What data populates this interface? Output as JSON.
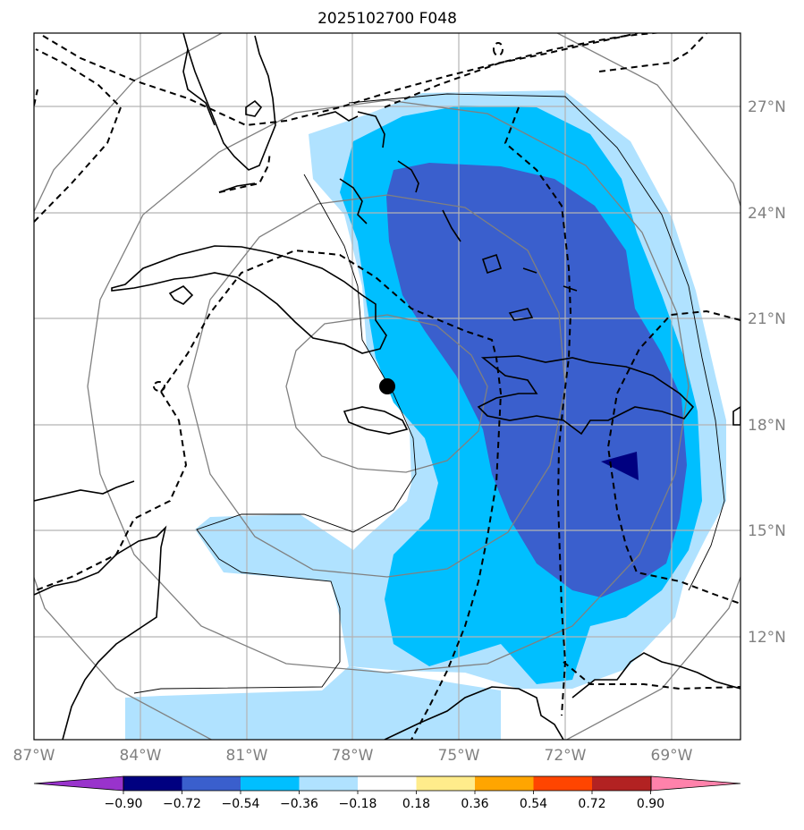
{
  "title": "2025102700 F048",
  "lat_labels": [
    "27°N",
    "24°N",
    "21°N",
    "18°N",
    "15°N",
    "12°N"
  ],
  "lon_labels": [
    "87°W",
    "84°W",
    "81°W",
    "78°W",
    "75°W",
    "72°W",
    "69°W"
  ],
  "colorbar": {
    "ticks": [
      "−0.90",
      "−0.72",
      "−0.54",
      "−0.36",
      "−0.18",
      "0.18",
      "0.36",
      "0.54",
      "0.72",
      "0.90"
    ],
    "colors": [
      "#9933cc",
      "#000080",
      "#3a5fcd",
      "#00bfff",
      "#b0e2ff",
      "#ffffff",
      "#ffec8b",
      "#ffa500",
      "#ff4500",
      "#b22222",
      "#ff82ab"
    ]
  },
  "colors": {
    "level_1": "#b0e2ff",
    "level_2": "#00bfff",
    "level_3": "#3a5fcd",
    "level_4": "#000080",
    "grid": "#b3b3b3",
    "range_rings": "#808080",
    "coastline": "#000000",
    "dashed_contour": "#000000"
  },
  "storm_center": {
    "lon": -77.0,
    "lat": 18.9
  }
}
